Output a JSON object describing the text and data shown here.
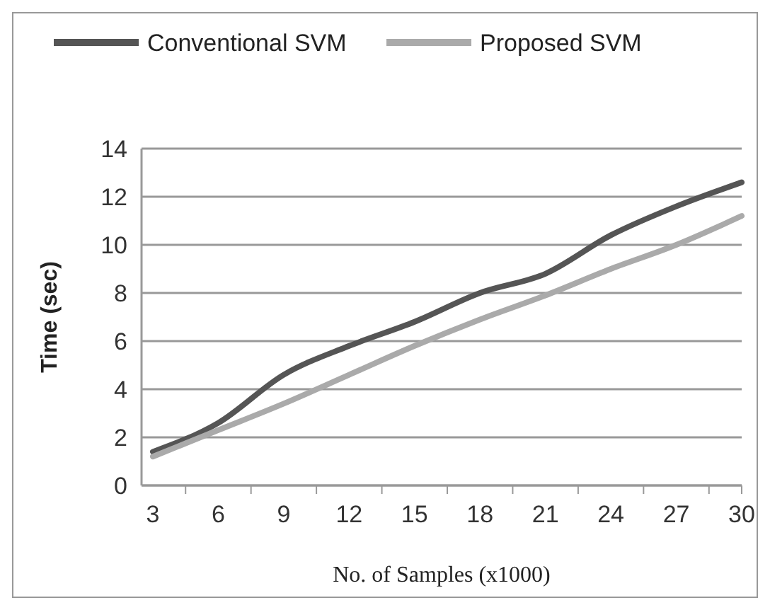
{
  "chart_data": {
    "type": "line",
    "xlabel": "No. of Samples (x1000)",
    "ylabel": "Time (sec)",
    "categories": [
      "3",
      "6",
      "9",
      "12",
      "15",
      "18",
      "21",
      "24",
      "27",
      "30"
    ],
    "series": [
      {
        "name": "Conventional SVM",
        "color": "#555555",
        "values": [
          1.4,
          2.6,
          4.6,
          5.8,
          6.8,
          8.0,
          8.8,
          10.4,
          11.6,
          12.6
        ]
      },
      {
        "name": "Proposed SVM",
        "color": "#aaaaaa",
        "values": [
          1.2,
          2.3,
          3.4,
          4.6,
          5.8,
          6.9,
          7.9,
          9.0,
          10.0,
          11.2
        ]
      }
    ],
    "ylim": [
      0,
      14
    ],
    "yticks": [
      0,
      2,
      4,
      6,
      8,
      10,
      12,
      14
    ],
    "grid": "y",
    "legend": "top",
    "marker": "none",
    "line_style": "solid"
  }
}
